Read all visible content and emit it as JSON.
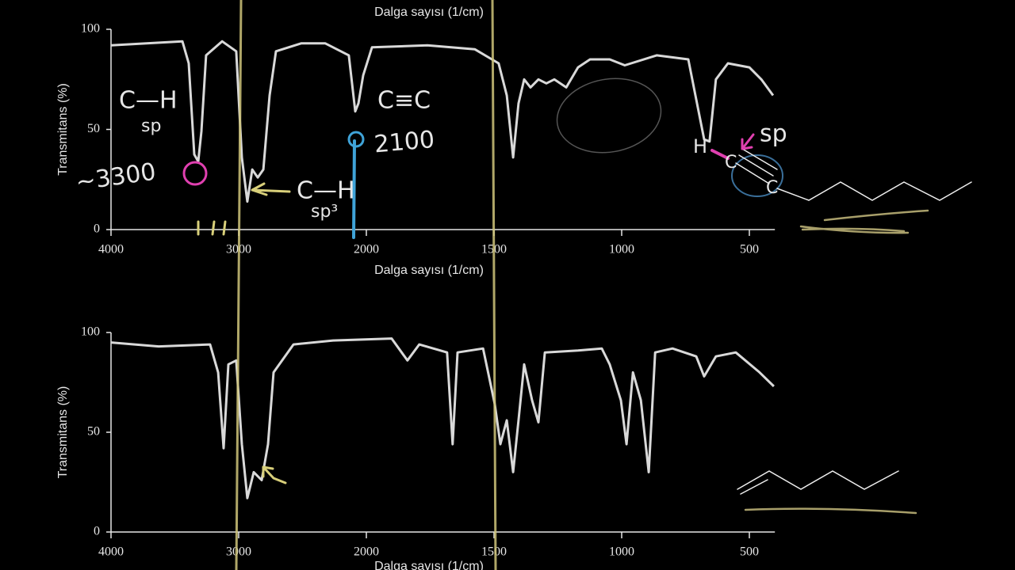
{
  "chart_data": [
    {
      "type": "line",
      "title": "Dalga sayısı (1/cm)",
      "x_label": "Dalga sayısı (1/cm)",
      "y_label": "Transmitans (%)",
      "color": "#d9d9d9",
      "xlim": [
        4000,
        400
      ],
      "xticks": [
        4000,
        3000,
        2000,
        1500,
        1000,
        500
      ],
      "ylim": [
        0,
        100
      ],
      "yticks": [
        0,
        50,
        100
      ],
      "x": [
        4000,
        3441,
        3391,
        3348,
        3317,
        3292,
        3255,
        3130,
        3019,
        2975,
        2932,
        2894,
        2851,
        2807,
        2758,
        2708,
        2509,
        2323,
        2137,
        2087,
        2062,
        2025,
        1978,
        1761,
        1575,
        1482,
        1450,
        1425,
        1404,
        1382,
        1357,
        1326,
        1295,
        1264,
        1217,
        1171,
        1124,
        1047,
        988,
        863,
        739,
        702,
        677,
        656,
        631,
        584,
        500,
        453,
        407
      ],
      "values": [
        92,
        94,
        83,
        37.5,
        34,
        49,
        87,
        94,
        89,
        36,
        14,
        30,
        26,
        30,
        67,
        89,
        93,
        93,
        87,
        59,
        63,
        77,
        91,
        92,
        90,
        83,
        67,
        36,
        63,
        75,
        71,
        75,
        73,
        75,
        71,
        81,
        85,
        85,
        82,
        87,
        85,
        61,
        45,
        44,
        75,
        83,
        81,
        75,
        67
      ],
      "annotations": [
        {
          "text": "C—H",
          "color": "#d8cf7a"
        },
        {
          "text": "sp",
          "color": "#d8cf7a"
        },
        {
          "text": "~3300",
          "color": "#d8cf7a"
        },
        {
          "text": "C≡C",
          "color": "#3fa3d8"
        },
        {
          "text": "2100",
          "color": "#3fa3d8"
        },
        {
          "text": "C—H",
          "color": "#d8cf7a"
        },
        {
          "text": "sp³",
          "color": "#d8cf7a"
        },
        {
          "text": "sp",
          "color": "#e040b0"
        },
        {
          "text": "H",
          "color": "#d8cf7a"
        },
        {
          "text": "C",
          "color": "#e6e6e6"
        },
        {
          "text": "C",
          "color": "#e6e6e6"
        }
      ]
    },
    {
      "type": "line",
      "x_label": "Dalga sayısı (1/cm)",
      "y_label": "Transmitans (%)",
      "color": "#d9d9d9",
      "xlim": [
        4000,
        400
      ],
      "xticks": [
        4000,
        3000,
        2000,
        1500,
        1000,
        500
      ],
      "ylim": [
        0,
        100
      ],
      "yticks": [
        0,
        50,
        100
      ],
      "x": [
        4000,
        3627,
        3224,
        3161,
        3118,
        3081,
        3019,
        2975,
        2932,
        2882,
        2820,
        2770,
        2727,
        2571,
        2261,
        1901,
        1839,
        1793,
        1684,
        1662,
        1643,
        1543,
        1497,
        1475,
        1450,
        1425,
        1404,
        1382,
        1351,
        1326,
        1301,
        1171,
        1078,
        1047,
        1003,
        981,
        956,
        925,
        894,
        869,
        801,
        708,
        677,
        631,
        553,
        460,
        404
      ],
      "values": [
        95,
        93,
        94,
        80,
        42,
        84,
        86,
        44,
        17,
        30,
        26,
        44,
        80,
        94,
        96,
        97,
        86,
        94,
        90,
        44,
        90,
        92,
        64,
        44,
        56,
        30,
        56,
        84,
        66,
        55,
        90,
        91,
        92,
        84,
        66,
        44,
        80,
        66,
        30,
        90,
        92,
        88,
        78,
        88,
        90,
        80,
        73
      ]
    }
  ]
}
